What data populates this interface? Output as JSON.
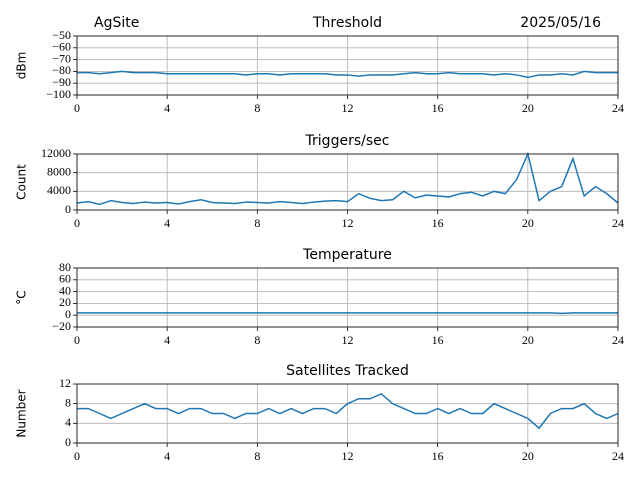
{
  "header": {
    "site": "AgSite",
    "date": "2025/05/16"
  },
  "chart_data": [
    {
      "type": "line",
      "title": "Threshold",
      "ylabel": "dBm",
      "grid": true,
      "color": "#1f77b4",
      "xlim": [
        0,
        24
      ],
      "xticks": [
        0,
        4,
        8,
        12,
        16,
        20,
        24
      ],
      "ylim": [
        -100,
        -50
      ],
      "yticks": [
        {
          "value": -100,
          "label": "−100"
        },
        {
          "value": -90,
          "label": "−90"
        },
        {
          "value": -80,
          "label": "−80"
        },
        {
          "value": -70,
          "label": "−70"
        },
        {
          "value": -60,
          "label": "−60"
        },
        {
          "value": -50,
          "label": "−50"
        }
      ],
      "x": [
        0,
        0.5,
        1,
        1.5,
        2,
        2.5,
        3,
        3.5,
        4,
        4.5,
        5,
        5.5,
        6,
        6.5,
        7,
        7.5,
        8,
        8.5,
        9,
        9.5,
        10,
        10.5,
        11,
        11.5,
        12,
        12.5,
        13,
        13.5,
        14,
        14.5,
        15,
        15.5,
        16,
        16.5,
        17,
        17.5,
        18,
        18.5,
        19,
        19.5,
        20,
        20.5,
        21,
        21.5,
        22,
        22.5,
        23,
        23.5,
        24
      ],
      "values": [
        -81,
        -81,
        -82,
        -81,
        -80,
        -81,
        -81,
        -81,
        -82,
        -82,
        -82,
        -82,
        -82,
        -82,
        -82,
        -83,
        -82,
        -82,
        -83,
        -82,
        -82,
        -82,
        -82,
        -83,
        -83,
        -84,
        -83,
        -83,
        -83,
        -82,
        -81,
        -82,
        -82,
        -81,
        -82,
        -82,
        -82,
        -83,
        -82,
        -83,
        -85,
        -83,
        -83,
        -82,
        -83,
        -80,
        -81,
        -81,
        -81
      ]
    },
    {
      "type": "line",
      "title": "Triggers/sec",
      "ylabel": "Count",
      "grid": true,
      "color": "#1f77b4",
      "xlim": [
        0,
        24
      ],
      "xticks": [
        0,
        4,
        8,
        12,
        16,
        20,
        24
      ],
      "ylim": [
        0,
        12000
      ],
      "yticks": [
        0,
        4000,
        8000,
        12000
      ],
      "x": [
        0,
        0.5,
        1,
        1.5,
        2,
        2.5,
        3,
        3.5,
        4,
        4.5,
        5,
        5.5,
        6,
        6.5,
        7,
        7.5,
        8,
        8.5,
        9,
        9.5,
        10,
        10.5,
        11,
        11.5,
        12,
        12.5,
        13,
        13.5,
        14,
        14.5,
        15,
        15.5,
        16,
        16.5,
        17,
        17.5,
        18,
        18.5,
        19,
        19.5,
        20,
        20.5,
        21,
        21.5,
        22,
        22.5,
        23,
        23.5,
        24
      ],
      "values": [
        1500,
        1800,
        1200,
        2000,
        1600,
        1400,
        1700,
        1500,
        1600,
        1300,
        1800,
        2200,
        1600,
        1500,
        1400,
        1700,
        1600,
        1500,
        1800,
        1600,
        1400,
        1700,
        1900,
        2000,
        1800,
        3500,
        2500,
        2000,
        2200,
        4000,
        2600,
        3200,
        3000,
        2800,
        3500,
        3800,
        3000,
        4000,
        3500,
        6500,
        12000,
        2000,
        4000,
        5000,
        11000,
        3000,
        5000,
        3500,
        1500
      ]
    },
    {
      "type": "line",
      "title": "Temperature",
      "ylabel": "°C",
      "grid": true,
      "color": "#1f77b4",
      "xlim": [
        0,
        24
      ],
      "xticks": [
        0,
        4,
        8,
        12,
        16,
        20,
        24
      ],
      "ylim": [
        -20,
        80
      ],
      "yticks": [
        {
          "value": -20,
          "label": "−20"
        },
        0,
        20,
        40,
        60,
        80
      ],
      "x": [
        0,
        0.5,
        1,
        1.5,
        2,
        2.5,
        3,
        3.5,
        4,
        4.5,
        5,
        5.5,
        6,
        6.5,
        7,
        7.5,
        8,
        8.5,
        9,
        9.5,
        10,
        10.5,
        11,
        11.5,
        12,
        12.5,
        13,
        13.5,
        14,
        14.5,
        15,
        15.5,
        16,
        16.5,
        17,
        17.5,
        18,
        18.5,
        19,
        19.5,
        20,
        20.5,
        21,
        21.5,
        22,
        22.5,
        23,
        23.5,
        24
      ],
      "values": [
        4,
        4,
        4,
        4,
        4,
        4,
        4,
        4,
        4,
        4,
        4,
        4,
        4,
        4,
        4,
        4,
        4,
        4,
        4,
        4,
        4,
        4,
        4,
        4,
        4,
        4,
        4,
        4,
        4,
        4,
        4,
        4,
        4,
        4,
        4,
        4,
        4,
        4,
        4,
        4,
        4,
        4,
        4,
        3,
        4,
        4,
        4,
        4,
        4
      ]
    },
    {
      "type": "line",
      "title": "Satellites Tracked",
      "ylabel": "Number",
      "grid": true,
      "color": "#1f77b4",
      "xlim": [
        0,
        24
      ],
      "xticks": [
        0,
        4,
        8,
        12,
        16,
        20,
        24
      ],
      "ylim": [
        0,
        12
      ],
      "yticks": [
        0,
        4,
        8,
        12
      ],
      "x": [
        0,
        0.5,
        1,
        1.5,
        2,
        2.5,
        3,
        3.5,
        4,
        4.5,
        5,
        5.5,
        6,
        6.5,
        7,
        7.5,
        8,
        8.5,
        9,
        9.5,
        10,
        10.5,
        11,
        11.5,
        12,
        12.5,
        13,
        13.5,
        14,
        14.5,
        15,
        15.5,
        16,
        16.5,
        17,
        17.5,
        18,
        18.5,
        19,
        19.5,
        20,
        20.5,
        21,
        21.5,
        22,
        22.5,
        23,
        23.5,
        24
      ],
      "values": [
        7,
        7,
        6,
        5,
        6,
        7,
        8,
        7,
        7,
        6,
        7,
        7,
        6,
        6,
        5,
        6,
        6,
        7,
        6,
        7,
        6,
        7,
        7,
        6,
        8,
        9,
        9,
        10,
        8,
        7,
        6,
        6,
        7,
        6,
        7,
        6,
        6,
        8,
        7,
        6,
        5,
        3,
        6,
        7,
        7,
        8,
        6,
        5,
        6
      ]
    }
  ]
}
